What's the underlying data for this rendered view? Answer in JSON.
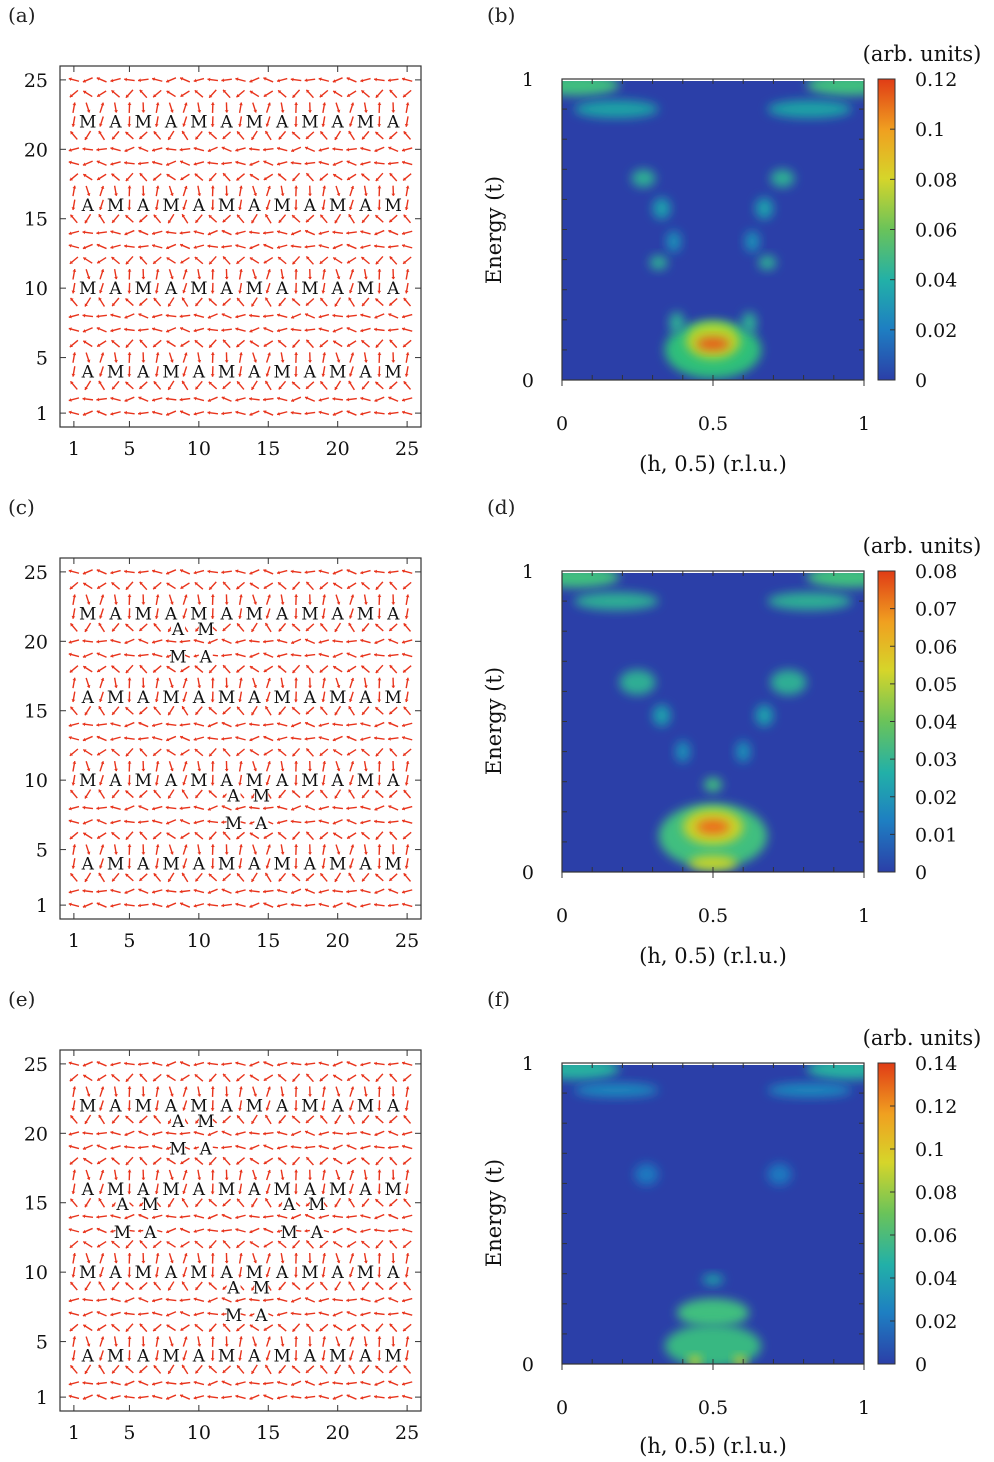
{
  "rows": [
    {
      "left": {
        "label": "(a)",
        "ticks": [
          "1",
          "5",
          "10",
          "15",
          "20",
          "25"
        ],
        "stripes": [
          {
            "y": 22,
            "letters": [
              "M",
              "A",
              "M",
              "A",
              "M",
              "A",
              "M",
              "A",
              "M",
              "A",
              "M",
              "A"
            ]
          },
          {
            "y": 16,
            "letters": [
              "A",
              "M",
              "A",
              "M",
              "A",
              "M",
              "A",
              "M",
              "A",
              "M",
              "A",
              "M"
            ]
          },
          {
            "y": 10,
            "letters": [
              "M",
              "A",
              "M",
              "A",
              "M",
              "A",
              "M",
              "A",
              "M",
              "A",
              "M",
              "A"
            ]
          },
          {
            "y": 4,
            "letters": [
              "A",
              "M",
              "A",
              "M",
              "A",
              "M",
              "A",
              "M",
              "A",
              "M",
              "A",
              "M"
            ]
          }
        ],
        "defects": []
      },
      "right": {
        "label": "(b)",
        "ylabel": "Energy (t)",
        "xlabel": "(h, 0.5) (r.l.u.)",
        "xticks": [
          "0",
          "0.5",
          "1"
        ],
        "yticks": [
          "0",
          "1"
        ],
        "cbar_title": "(arb. units)",
        "cbar_ticks": [
          "0.12",
          "0.1",
          "0.08",
          "0.06",
          "0.04",
          "0.02",
          "0"
        ],
        "features": [
          {
            "h": 0.05,
            "e": 0.98,
            "w": 0.14,
            "d": 0.03,
            "c": "#3fbf7f"
          },
          {
            "h": 0.95,
            "e": 0.98,
            "w": 0.14,
            "d": 0.03,
            "c": "#3fbf7f"
          },
          {
            "h": 0.18,
            "e": 0.9,
            "w": 0.14,
            "d": 0.025,
            "c": "#1aa2a6"
          },
          {
            "h": 0.82,
            "e": 0.9,
            "w": 0.14,
            "d": 0.025,
            "c": "#1aa2a6"
          },
          {
            "h": 0.27,
            "e": 0.67,
            "w": 0.04,
            "d": 0.025,
            "c": "#2fae94"
          },
          {
            "h": 0.73,
            "e": 0.67,
            "w": 0.04,
            "d": 0.025,
            "c": "#2fae94"
          },
          {
            "h": 0.33,
            "e": 0.57,
            "w": 0.03,
            "d": 0.03,
            "c": "#1f9fae"
          },
          {
            "h": 0.67,
            "e": 0.57,
            "w": 0.03,
            "d": 0.03,
            "c": "#1f9fae"
          },
          {
            "h": 0.37,
            "e": 0.46,
            "w": 0.025,
            "d": 0.03,
            "c": "#1d8fb8"
          },
          {
            "h": 0.63,
            "e": 0.46,
            "w": 0.025,
            "d": 0.03,
            "c": "#1d8fb8"
          },
          {
            "h": 0.32,
            "e": 0.39,
            "w": 0.03,
            "d": 0.02,
            "c": "#2fae94"
          },
          {
            "h": 0.68,
            "e": 0.39,
            "w": 0.03,
            "d": 0.02,
            "c": "#2fae94"
          },
          {
            "h": 0.5,
            "e": 0.1,
            "w": 0.16,
            "d": 0.08,
            "c": "#2fbf7a"
          },
          {
            "h": 0.5,
            "e": 0.13,
            "w": 0.09,
            "d": 0.05,
            "c": "#b7d62f"
          },
          {
            "h": 0.5,
            "e": 0.12,
            "w": 0.055,
            "d": 0.018,
            "c": "#e85a1f"
          },
          {
            "h": 0.38,
            "e": 0.19,
            "w": 0.025,
            "d": 0.03,
            "c": "#2fae94"
          },
          {
            "h": 0.62,
            "e": 0.19,
            "w": 0.025,
            "d": 0.03,
            "c": "#2fae94"
          }
        ]
      }
    },
    {
      "left": {
        "label": "(c)",
        "ticks": [
          "1",
          "5",
          "10",
          "15",
          "20",
          "25"
        ],
        "stripes": [
          {
            "y": 22,
            "letters": [
              "M",
              "A",
              "M",
              "A",
              "M",
              "A",
              "M",
              "A",
              "M",
              "A",
              "M",
              "A"
            ]
          },
          {
            "y": 16,
            "letters": [
              "A",
              "M",
              "A",
              "M",
              "A",
              "M",
              "A",
              "M",
              "A",
              "M",
              "A",
              "M"
            ]
          },
          {
            "y": 10,
            "letters": [
              "M",
              "A",
              "M",
              "A",
              "M",
              "A",
              "M",
              "A",
              "M",
              "A",
              "M",
              "A"
            ]
          },
          {
            "y": 4,
            "letters": [
              "A",
              "M",
              "A",
              "M",
              "A",
              "M",
              "A",
              "M",
              "A",
              "M",
              "A",
              "M"
            ]
          }
        ],
        "defects": [
          {
            "x": 9.5,
            "y": 19.9,
            "letters": [
              "A",
              "M",
              "M",
              "A"
            ]
          },
          {
            "x": 13.5,
            "y": 7.9,
            "letters": [
              "A",
              "M",
              "M",
              "A"
            ]
          }
        ]
      },
      "right": {
        "label": "(d)",
        "ylabel": "Energy (t)",
        "xlabel": "(h, 0.5) (r.l.u.)",
        "xticks": [
          "0",
          "0.5",
          "1"
        ],
        "yticks": [
          "0",
          "1"
        ],
        "cbar_title": "(arb. units)",
        "cbar_ticks": [
          "0.08",
          "0.07",
          "0.06",
          "0.05",
          "0.04",
          "0.03",
          "0.02",
          "0.01",
          "0"
        ],
        "features": [
          {
            "h": 0.05,
            "e": 0.98,
            "w": 0.14,
            "d": 0.03,
            "c": "#3fbf7f"
          },
          {
            "h": 0.95,
            "e": 0.98,
            "w": 0.14,
            "d": 0.03,
            "c": "#3fbf7f"
          },
          {
            "h": 0.18,
            "e": 0.9,
            "w": 0.14,
            "d": 0.025,
            "c": "#2fae94"
          },
          {
            "h": 0.82,
            "e": 0.9,
            "w": 0.14,
            "d": 0.025,
            "c": "#2fae94"
          },
          {
            "h": 0.25,
            "e": 0.63,
            "w": 0.06,
            "d": 0.035,
            "c": "#2fae94"
          },
          {
            "h": 0.75,
            "e": 0.63,
            "w": 0.06,
            "d": 0.035,
            "c": "#2fae94"
          },
          {
            "h": 0.33,
            "e": 0.52,
            "w": 0.03,
            "d": 0.03,
            "c": "#1f9fae"
          },
          {
            "h": 0.67,
            "e": 0.52,
            "w": 0.03,
            "d": 0.03,
            "c": "#1f9fae"
          },
          {
            "h": 0.4,
            "e": 0.4,
            "w": 0.025,
            "d": 0.03,
            "c": "#1d8fb8"
          },
          {
            "h": 0.6,
            "e": 0.4,
            "w": 0.025,
            "d": 0.03,
            "c": "#1d8fb8"
          },
          {
            "h": 0.5,
            "e": 0.29,
            "w": 0.03,
            "d": 0.02,
            "c": "#3fbf7f"
          },
          {
            "h": 0.5,
            "e": 0.12,
            "w": 0.18,
            "d": 0.09,
            "c": "#3fbf7f"
          },
          {
            "h": 0.5,
            "e": 0.15,
            "w": 0.1,
            "d": 0.05,
            "c": "#c7d42a"
          },
          {
            "h": 0.5,
            "e": 0.15,
            "w": 0.055,
            "d": 0.02,
            "c": "#ee6a1c"
          },
          {
            "h": 0.5,
            "e": 0.03,
            "w": 0.08,
            "d": 0.02,
            "c": "#c7d42a"
          }
        ]
      }
    },
    {
      "left": {
        "label": "(e)",
        "ticks": [
          "1",
          "5",
          "10",
          "15",
          "20",
          "25"
        ],
        "stripes": [
          {
            "y": 22,
            "letters": [
              "M",
              "A",
              "M",
              "A",
              "M",
              "A",
              "M",
              "A",
              "M",
              "A",
              "M",
              "A"
            ]
          },
          {
            "y": 16,
            "letters": [
              "A",
              "M",
              "A",
              "M",
              "A",
              "M",
              "A",
              "M",
              "A",
              "M",
              "A",
              "M"
            ]
          },
          {
            "y": 10,
            "letters": [
              "M",
              "A",
              "M",
              "A",
              "M",
              "A",
              "M",
              "A",
              "M",
              "A",
              "M",
              "A"
            ]
          },
          {
            "y": 4,
            "letters": [
              "A",
              "M",
              "A",
              "M",
              "A",
              "M",
              "A",
              "M",
              "A",
              "M",
              "A",
              "M"
            ]
          }
        ],
        "defects": [
          {
            "x": 9.5,
            "y": 19.9,
            "letters": [
              "A",
              "M",
              "M",
              "A"
            ]
          },
          {
            "x": 5.5,
            "y": 13.9,
            "letters": [
              "A",
              "M",
              "M",
              "A"
            ]
          },
          {
            "x": 17.5,
            "y": 13.9,
            "letters": [
              "A",
              "M",
              "M",
              "A"
            ]
          },
          {
            "x": 13.5,
            "y": 7.9,
            "letters": [
              "A",
              "M",
              "M",
              "A"
            ]
          }
        ]
      },
      "right": {
        "label": "(f)",
        "ylabel": "Energy (t)",
        "xlabel": "(h, 0.5) (r.l.u.)",
        "xticks": [
          "0",
          "0.5",
          "1"
        ],
        "yticks": [
          "0",
          "1"
        ],
        "cbar_title": "(arb. units)",
        "cbar_ticks": [
          "0.14",
          "0.12",
          "0.1",
          "0.08",
          "0.06",
          "0.04",
          "0.02",
          "0"
        ],
        "features": [
          {
            "h": 0.05,
            "e": 0.98,
            "w": 0.14,
            "d": 0.03,
            "c": "#26b0a0"
          },
          {
            "h": 0.95,
            "e": 0.98,
            "w": 0.14,
            "d": 0.03,
            "c": "#26b0a0"
          },
          {
            "h": 0.18,
            "e": 0.91,
            "w": 0.14,
            "d": 0.02,
            "c": "#1a88bd"
          },
          {
            "h": 0.82,
            "e": 0.91,
            "w": 0.14,
            "d": 0.02,
            "c": "#1a88bd"
          },
          {
            "h": 0.28,
            "e": 0.63,
            "w": 0.04,
            "d": 0.03,
            "c": "#1a78c0"
          },
          {
            "h": 0.72,
            "e": 0.63,
            "w": 0.04,
            "d": 0.03,
            "c": "#1a78c0"
          },
          {
            "h": 0.5,
            "e": 0.28,
            "w": 0.035,
            "d": 0.015,
            "c": "#1fa2a8"
          },
          {
            "h": 0.5,
            "e": 0.17,
            "w": 0.12,
            "d": 0.04,
            "c": "#3fbf7f"
          },
          {
            "h": 0.5,
            "e": 0.06,
            "w": 0.16,
            "d": 0.06,
            "c": "#38b882"
          },
          {
            "h": 0.44,
            "e": 0.01,
            "w": 0.02,
            "d": 0.015,
            "c": "#c7d42a"
          },
          {
            "h": 0.59,
            "e": 0.01,
            "w": 0.02,
            "d": 0.015,
            "c": "#c7d42a"
          }
        ]
      }
    }
  ],
  "colors": {
    "arrow": "#e8341c",
    "map_background": "#2b3fa8",
    "colormap": [
      "#2b3fa8",
      "#1e7fc2",
      "#22b0a8",
      "#6ac35a",
      "#d6d52a",
      "#f0a020",
      "#e03c16"
    ]
  }
}
